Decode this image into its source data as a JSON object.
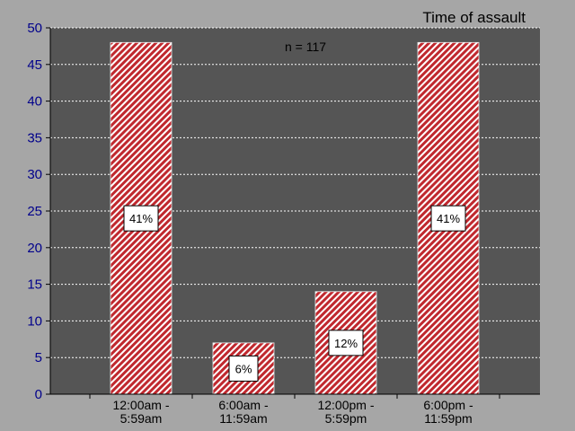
{
  "chart_data": {
    "type": "bar",
    "title": "Time of assault",
    "annotation": "n = 117",
    "categories": [
      [
        "12:00am -",
        "5:59am"
      ],
      [
        "6:00am -",
        "11:59am"
      ],
      [
        "12:00pm -",
        "5:59pm"
      ],
      [
        "6:00pm -",
        "11:59pm"
      ]
    ],
    "values": [
      48,
      7,
      14,
      48
    ],
    "data_labels": [
      "41%",
      "6%",
      "12%",
      "41%"
    ],
    "ylim": [
      0,
      50
    ],
    "yticks": [
      0,
      5,
      10,
      15,
      20,
      25,
      30,
      35,
      40,
      45,
      50
    ],
    "xlabel": "",
    "ylabel": "",
    "grid": true,
    "colors": {
      "page_background": "#a6a6a6",
      "plot_background": "#555555",
      "bar_base": "#ffffff",
      "bar_stripe": "#c0282e",
      "tick_label": "#00008b",
      "gridline": "#ffffff",
      "axis": "#000000"
    }
  }
}
